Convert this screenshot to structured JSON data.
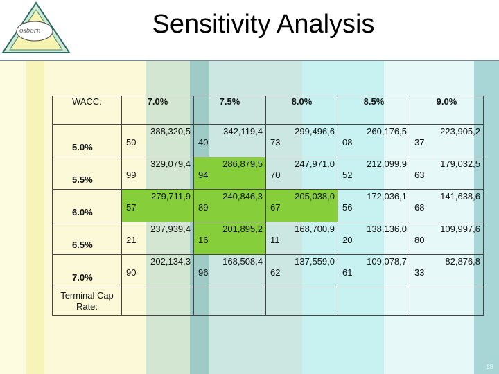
{
  "slide": {
    "title": "Sensitivity Analysis",
    "logo_text": "osborn",
    "page_number": "18"
  },
  "table": {
    "corner_label": "WACC:",
    "wacc_columns": [
      "7.0%",
      "7.5%",
      "8.0%",
      "8.5%",
      "9.0%"
    ],
    "rows": [
      {
        "cap_rate": "5.0%",
        "values": [
          [
            "388,320,5",
            "50"
          ],
          [
            "342,119,4",
            "40"
          ],
          [
            "299,496,6",
            "73"
          ],
          [
            "260,176,5",
            "08"
          ],
          [
            "223,905,2",
            "37"
          ]
        ]
      },
      {
        "cap_rate": "5.5%",
        "values": [
          [
            "329,079,4",
            "99"
          ],
          [
            "286,879,5",
            "94"
          ],
          [
            "247,971,0",
            "70"
          ],
          [
            "212,099,9",
            "52"
          ],
          [
            "179,032,5",
            "63"
          ]
        ]
      },
      {
        "cap_rate": "6.0%",
        "values": [
          [
            "279,711,9",
            "57"
          ],
          [
            "240,846,3",
            "89"
          ],
          [
            "205,038,0",
            "67"
          ],
          [
            "172,036,1",
            "56"
          ],
          [
            "141,638,6",
            "68"
          ]
        ]
      },
      {
        "cap_rate": "6.5%",
        "values": [
          [
            "237,939,4",
            "21"
          ],
          [
            "201,895,2",
            "16"
          ],
          [
            "168,700,9",
            "11"
          ],
          [
            "138,136,0",
            "20"
          ],
          [
            "109,997,6",
            "80"
          ]
        ]
      },
      {
        "cap_rate": "7.0%",
        "values": [
          [
            "202,134,3",
            "90"
          ],
          [
            "168,508,4",
            "96"
          ],
          [
            "137,559,0",
            "62"
          ],
          [
            "109,078,7",
            "61"
          ],
          [
            "82,876,8",
            "33"
          ]
        ]
      }
    ],
    "terminal_label": "Terminal Cap Rate:"
  },
  "colors": {
    "cream": "#fdfbe0",
    "yellow_band": "#f6f4b8",
    "sage": "#c9dfc8",
    "teal_light": "#bde3e1",
    "teal_dark": "#98cbc7",
    "green_highlight": "#86cf3a",
    "cyan_band": "#c4f1f1",
    "ice": "#e6f8f8",
    "teal_edge": "#9fcfcf"
  }
}
